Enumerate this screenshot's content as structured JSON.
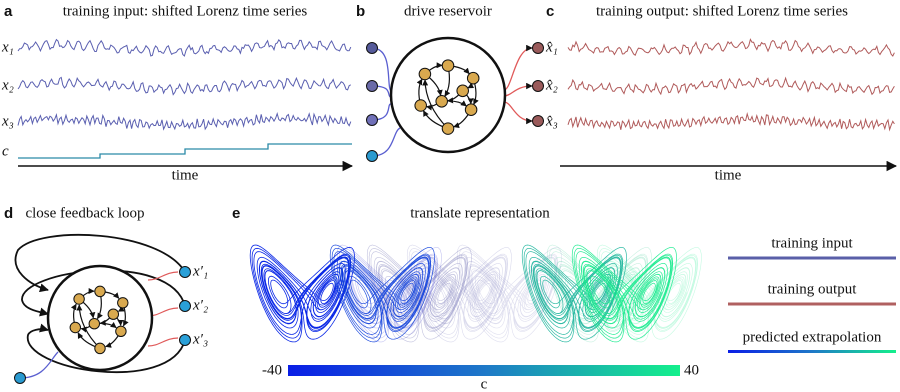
{
  "panel_a": {
    "letter": "a",
    "title": "training input: shifted Lorenz time series",
    "labels": [
      "x₁",
      "x₂",
      "x₃",
      "c"
    ],
    "axis_label": "time"
  },
  "panel_b": {
    "letter": "b",
    "title": "drive reservoir"
  },
  "panel_c": {
    "letter": "c",
    "title": "training output: shifted Lorenz time series",
    "labels": [
      "x̂₁",
      "x̂₂",
      "x̂₃"
    ],
    "axis_label": "time"
  },
  "panel_d": {
    "letter": "d",
    "title": "close feedback loop",
    "labels": [
      "x′₁",
      "x′₂",
      "x′₃"
    ]
  },
  "panel_e": {
    "letter": "e",
    "title": "translate representation",
    "colorbar": {
      "min": -40,
      "max": 40,
      "label": "c"
    },
    "legend": [
      "training input",
      "training output",
      "predicted extrapolation"
    ]
  }
}
